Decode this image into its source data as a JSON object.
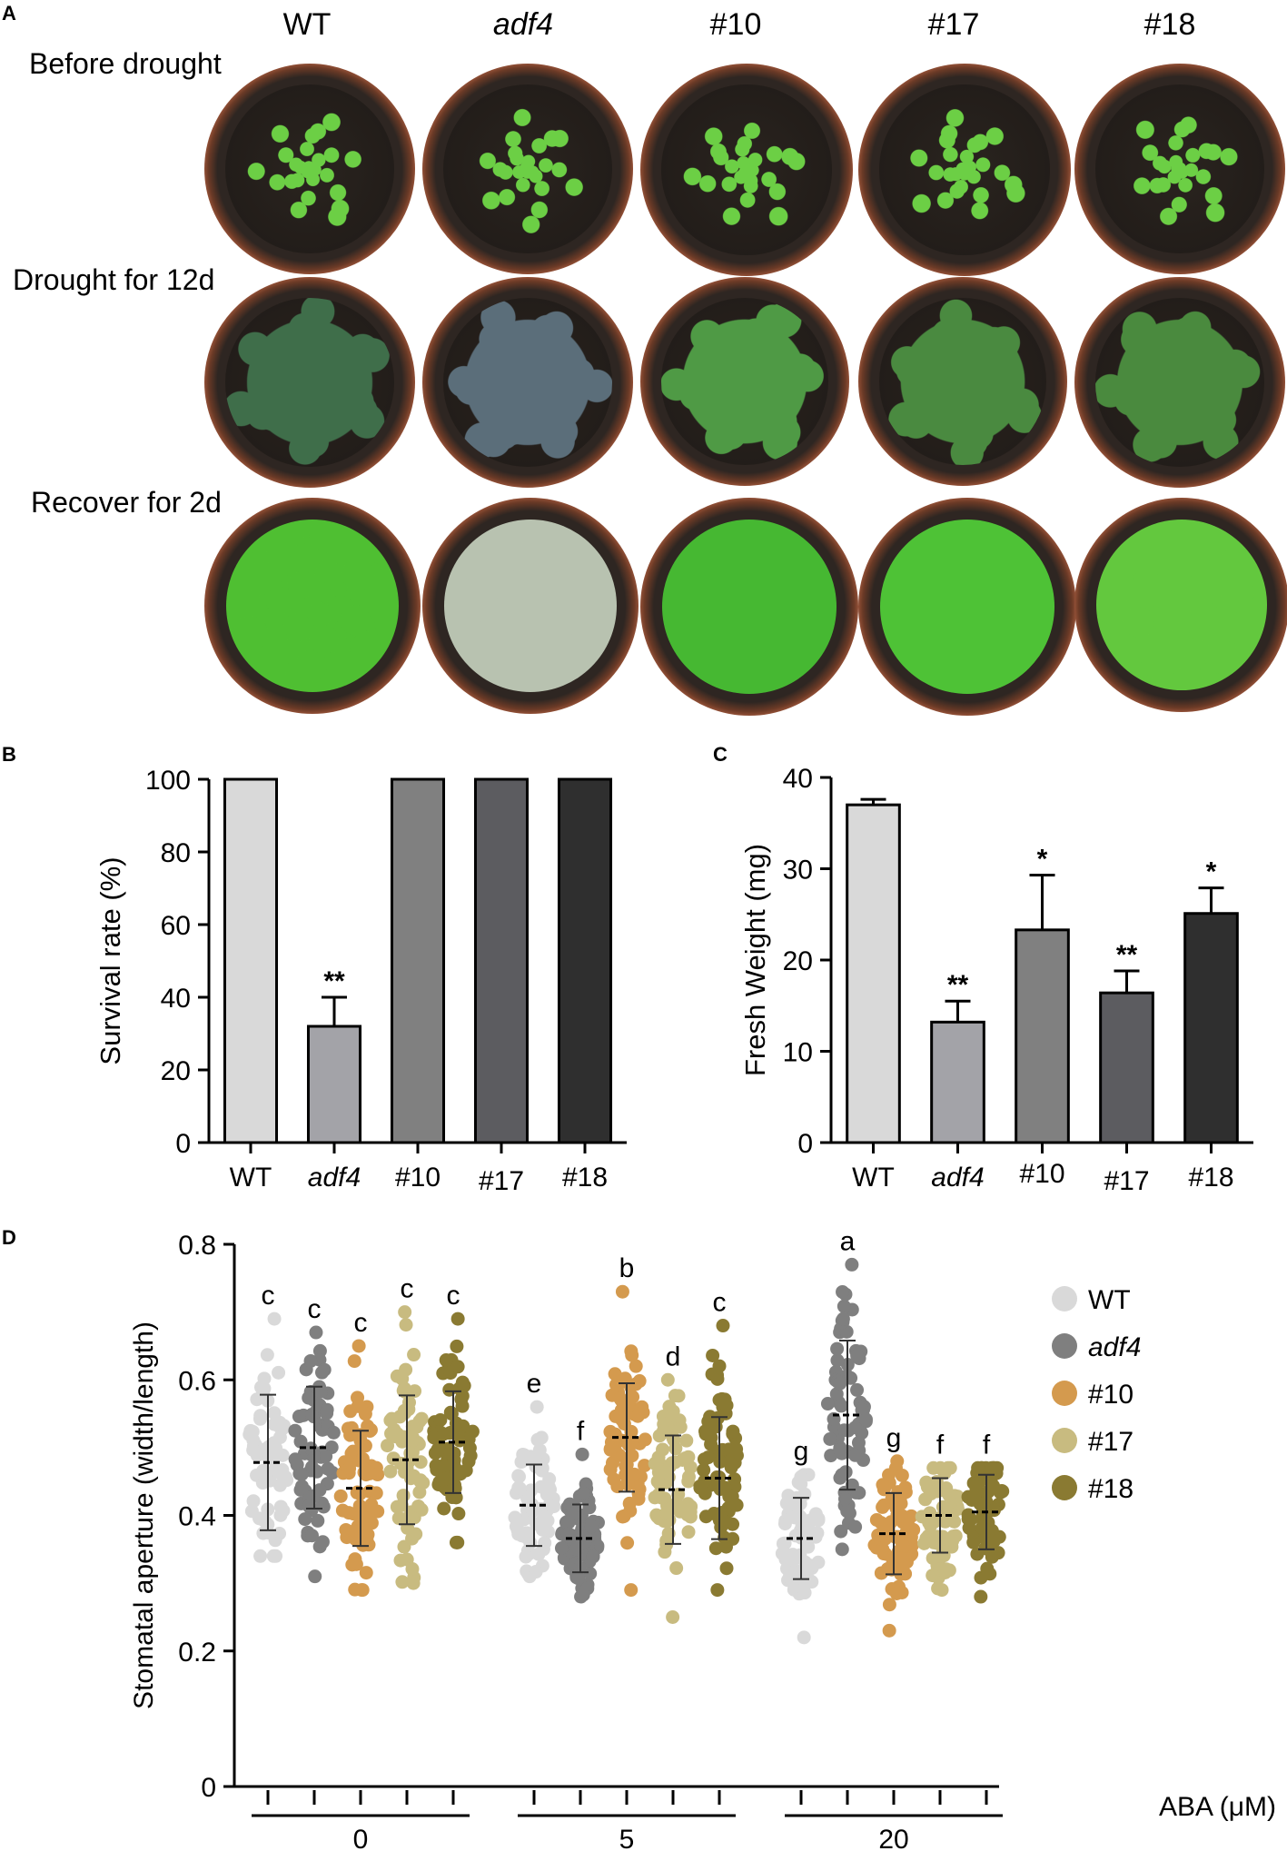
{
  "panel_letters": {
    "a": "A",
    "b": "B",
    "c": "C",
    "d": "D"
  },
  "photo_panel": {
    "columns": [
      "WT",
      "adf4",
      "#10",
      "#17",
      "#18"
    ],
    "rows": [
      "Before drought",
      "Drought for 12d",
      "Recover for 2d"
    ]
  },
  "chart_data": [
    {
      "type": "bar",
      "panel": "B",
      "categories": [
        "WT",
        "adf4",
        "#10",
        "#17",
        "#18"
      ],
      "values": [
        100,
        32,
        100,
        100,
        100
      ],
      "errors": [
        0,
        8,
        0,
        0,
        0
      ],
      "significance": [
        "",
        "**",
        "",
        "",
        ""
      ],
      "colors": [
        "#d9d9d9",
        "#a3a3a8",
        "#808080",
        "#5c5c60",
        "#2f2f2f"
      ],
      "xlabel": "",
      "ylabel": "Survival rate (%)",
      "ylim": [
        0,
        100
      ],
      "yticks": [
        0,
        20,
        40,
        60,
        80,
        100
      ]
    },
    {
      "type": "bar",
      "panel": "C",
      "categories": [
        "WT",
        "adf4",
        "#10",
        "#17",
        "#18"
      ],
      "values": [
        37,
        13.2,
        23.3,
        16.4,
        25.1
      ],
      "errors": [
        0.6,
        2.3,
        6.0,
        2.4,
        2.8
      ],
      "significance": [
        "",
        "**",
        "*",
        "**",
        "*"
      ],
      "colors": [
        "#d9d9d9",
        "#a3a3a8",
        "#808080",
        "#5c5c60",
        "#2f2f2f"
      ],
      "xlabel": "",
      "ylabel": "Fresh Weight (mg)",
      "ylim": [
        0,
        40
      ],
      "yticks": [
        0,
        10,
        20,
        30,
        40
      ]
    },
    {
      "type": "scatter",
      "panel": "D",
      "ylabel": "Stomatal aperture (width/length)",
      "xlabel": "ABA (μM)",
      "ylim": [
        0,
        0.8
      ],
      "yticks": [
        0,
        0.2,
        0.4,
        0.6,
        0.8
      ],
      "ytick_labels": [
        "0",
        "0.2",
        "0.4",
        "0.6",
        "0.8"
      ],
      "groups": [
        "0",
        "5",
        "20"
      ],
      "legend_position": "right",
      "series": [
        {
          "name": "WT",
          "color": "#d9d9d9"
        },
        {
          "name": "adf4",
          "color": "#7f7f7f"
        },
        {
          "name": "#10",
          "color": "#d49a4e"
        },
        {
          "name": "#17",
          "color": "#c8bb80"
        },
        {
          "name": "#18",
          "color": "#8a7a32"
        }
      ],
      "points": [
        {
          "group": "0",
          "series": "WT",
          "mean": 0.478,
          "sd": 0.1,
          "min": 0.34,
          "max": 0.69,
          "letter": "c"
        },
        {
          "group": "0",
          "series": "adf4",
          "mean": 0.5,
          "sd": 0.09,
          "min": 0.31,
          "max": 0.67,
          "letter": "c"
        },
        {
          "group": "0",
          "series": "#10",
          "mean": 0.44,
          "sd": 0.085,
          "min": 0.29,
          "max": 0.65,
          "letter": "c"
        },
        {
          "group": "0",
          "series": "#17",
          "mean": 0.482,
          "sd": 0.095,
          "min": 0.3,
          "max": 0.7,
          "letter": "c"
        },
        {
          "group": "0",
          "series": "#18",
          "mean": 0.508,
          "sd": 0.075,
          "min": 0.36,
          "max": 0.69,
          "letter": "c"
        },
        {
          "group": "5",
          "series": "WT",
          "mean": 0.415,
          "sd": 0.06,
          "min": 0.31,
          "max": 0.56,
          "letter": "e"
        },
        {
          "group": "5",
          "series": "adf4",
          "mean": 0.366,
          "sd": 0.05,
          "min": 0.28,
          "max": 0.49,
          "letter": "f"
        },
        {
          "group": "5",
          "series": "#10",
          "mean": 0.515,
          "sd": 0.08,
          "min": 0.29,
          "max": 0.73,
          "letter": "b"
        },
        {
          "group": "5",
          "series": "#17",
          "mean": 0.438,
          "sd": 0.08,
          "min": 0.25,
          "max": 0.6,
          "letter": "d"
        },
        {
          "group": "5",
          "series": "#18",
          "mean": 0.455,
          "sd": 0.09,
          "min": 0.29,
          "max": 0.68,
          "letter": "c"
        },
        {
          "group": "20",
          "series": "WT",
          "mean": 0.366,
          "sd": 0.06,
          "min": 0.22,
          "max": 0.46,
          "letter": "g"
        },
        {
          "group": "20",
          "series": "adf4",
          "mean": 0.548,
          "sd": 0.11,
          "min": 0.35,
          "max": 0.77,
          "letter": "a"
        },
        {
          "group": "20",
          "series": "#10",
          "mean": 0.373,
          "sd": 0.06,
          "min": 0.23,
          "max": 0.48,
          "letter": "g"
        },
        {
          "group": "20",
          "series": "#17",
          "mean": 0.4,
          "sd": 0.055,
          "min": 0.29,
          "max": 0.47,
          "letter": "f"
        },
        {
          "group": "20",
          "series": "#18",
          "mean": 0.405,
          "sd": 0.055,
          "min": 0.28,
          "max": 0.47,
          "letter": "f"
        }
      ]
    }
  ],
  "colors": {
    "pot_rim": "#c16a4a",
    "soil": "#231d19",
    "healthy_leaf": "#5fbf3a",
    "stressed_leaf": "#4c7a4c",
    "dead_leaf": "#b8c2b0"
  }
}
